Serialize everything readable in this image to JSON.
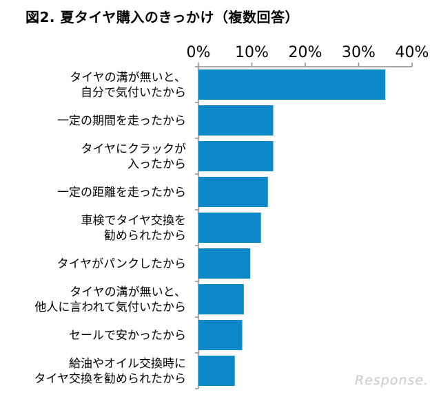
{
  "chart_data": {
    "type": "bar",
    "orientation": "horizontal",
    "title": "図2. 夏タイヤ購入のきっかけ（複数回答）",
    "categories": [
      [
        "タイヤの溝が無いと、",
        "自分で気付いたから"
      ],
      [
        "一定の期間を走ったから"
      ],
      [
        "タイヤにクラックが",
        "入ったから"
      ],
      [
        "一定の距離を走ったから"
      ],
      [
        "車検でタイヤ交換を",
        "勧められたから"
      ],
      [
        "タイヤがパンクしたから"
      ],
      [
        "タイヤの溝が無いと、",
        "他人に言われて気付いたから"
      ],
      [
        "セールで安かったから"
      ],
      [
        "給油やオイル交換時に",
        "タイヤ交換を勧められたから"
      ]
    ],
    "values": [
      35,
      14,
      14,
      13,
      11.7,
      9.7,
      8.5,
      8.2,
      6.8
    ],
    "xlim": [
      0,
      40
    ],
    "xticks": [
      0,
      10,
      20,
      30,
      40
    ],
    "xtick_labels": [
      "0%",
      "10%",
      "20%",
      "30%",
      "40%"
    ],
    "axis_position": "top",
    "grid": false,
    "bar_color": "#0c87c8",
    "axis_color": "#8c8c8c"
  },
  "watermark": "Response."
}
